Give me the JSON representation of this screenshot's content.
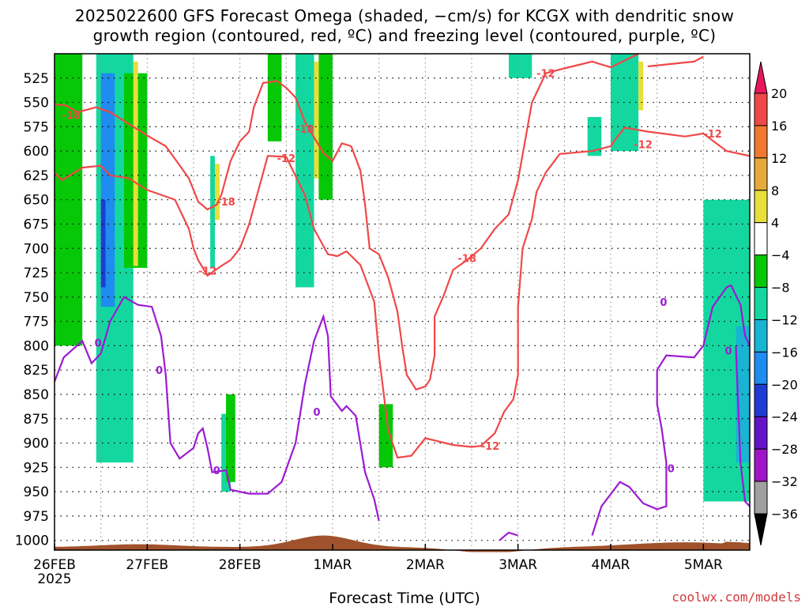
{
  "chart_data": {
    "type": "contour",
    "title_line1": "2025022600 GFS Forecast Omega (shaded, −cm/s) for KCGX with dendritic snow",
    "title_line2": "growth region (contoured, red, ºC) and freezing level (contoured, purple, ºC)",
    "xlabel": "Forecast Time (UTC)",
    "credit": "coolwx.com/models",
    "x_ticks": [
      "26FEB",
      "27FEB",
      "28FEB",
      "1MAR",
      "2MAR",
      "3MAR",
      "4MAR",
      "5MAR"
    ],
    "x_year": "2025",
    "y_ticks": [
      525,
      550,
      575,
      600,
      625,
      650,
      675,
      700,
      725,
      750,
      775,
      800,
      825,
      850,
      875,
      900,
      925,
      950,
      975,
      1000
    ],
    "y_range_hpa": [
      500,
      1010
    ],
    "x_range_days": [
      0,
      7.5
    ],
    "colorbar_labels": [
      20,
      16,
      12,
      8,
      4,
      -4,
      -8,
      -12,
      -16,
      -20,
      -24,
      -28,
      -32,
      -36
    ],
    "colorbar_colors": [
      "#e8165a",
      "#f04848",
      "#f07830",
      "#e6a93c",
      "#e8de3c",
      "#ffffff",
      "#06c806",
      "#14d7a0",
      "#18b4d2",
      "#1e8cf0",
      "#1e3cd2",
      "#6414c8",
      "#a014c8",
      "#a0a0a0",
      "#000000"
    ],
    "contour_labels": {
      "red": [
        "-18",
        "-12",
        "-18",
        "-12",
        "-18",
        "-12",
        "-18",
        "-12",
        "-12",
        "-12"
      ],
      "purple": [
        "0",
        "0",
        "0",
        "0",
        "0",
        "0",
        "0"
      ]
    },
    "red_contours": [
      {
        "level": -18,
        "points": [
          [
            0,
            552
          ],
          [
            0.12,
            553
          ],
          [
            0.25,
            560
          ],
          [
            0.45,
            555
          ],
          [
            0.6,
            560
          ],
          [
            0.8,
            572
          ],
          [
            1.0,
            584
          ],
          [
            1.2,
            595
          ],
          [
            1.3,
            608
          ],
          [
            1.45,
            628
          ],
          [
            1.55,
            652
          ],
          [
            1.65,
            660
          ],
          [
            1.75,
            655
          ],
          [
            1.8,
            645
          ],
          [
            1.9,
            610
          ],
          [
            2.0,
            590
          ],
          [
            2.1,
            580
          ],
          [
            2.15,
            555
          ],
          [
            2.25,
            530
          ],
          [
            2.4,
            528
          ],
          [
            2.5,
            535
          ],
          [
            2.6,
            545
          ],
          [
            2.7,
            570
          ],
          [
            2.75,
            578
          ],
          [
            2.9,
            602
          ],
          [
            3.0,
            610
          ],
          [
            3.1,
            592
          ],
          [
            3.2,
            595
          ],
          [
            3.3,
            620
          ],
          [
            3.35,
            655
          ],
          [
            3.4,
            700
          ],
          [
            3.5,
            706
          ],
          [
            3.6,
            730
          ],
          [
            3.7,
            765
          ],
          [
            3.75,
            800
          ],
          [
            3.8,
            830
          ],
          [
            3.9,
            845
          ],
          [
            4.0,
            842
          ],
          [
            4.05,
            835
          ],
          [
            4.1,
            810
          ],
          [
            4.1,
            770
          ],
          [
            4.2,
            748
          ],
          [
            4.3,
            722
          ],
          [
            4.45,
            712
          ],
          [
            4.6,
            700
          ],
          [
            4.75,
            680
          ],
          [
            4.9,
            665
          ],
          [
            5.0,
            630
          ],
          [
            5.15,
            550
          ],
          [
            5.3,
            520
          ],
          [
            5.5,
            515
          ],
          [
            5.8,
            508
          ],
          [
            6.0,
            514
          ],
          [
            6.3,
            500
          ]
        ]
      },
      {
        "level": -18,
        "points": [
          [
            6.4,
            513
          ],
          [
            6.9,
            508
          ],
          [
            7.0,
            503
          ]
        ]
      },
      {
        "level": -12,
        "points": [
          [
            0,
            622
          ],
          [
            0.08,
            630
          ],
          [
            0.3,
            617
          ],
          [
            0.5,
            615
          ],
          [
            0.6,
            625
          ],
          [
            0.8,
            628
          ],
          [
            1.0,
            640
          ],
          [
            1.15,
            645
          ],
          [
            1.3,
            650
          ],
          [
            1.45,
            680
          ],
          [
            1.5,
            700
          ],
          [
            1.55,
            712
          ],
          [
            1.65,
            728
          ],
          [
            1.8,
            718
          ],
          [
            1.9,
            712
          ],
          [
            2.0,
            700
          ],
          [
            2.1,
            675
          ],
          [
            2.2,
            640
          ],
          [
            2.3,
            605
          ],
          [
            2.5,
            606
          ],
          [
            2.7,
            645
          ],
          [
            2.8,
            680
          ],
          [
            2.95,
            706
          ],
          [
            3.05,
            708
          ],
          [
            3.15,
            703
          ],
          [
            3.3,
            717
          ],
          [
            3.45,
            755
          ],
          [
            3.5,
            810
          ],
          [
            3.6,
            887
          ],
          [
            3.7,
            915
          ],
          [
            3.85,
            913
          ],
          [
            4.0,
            895
          ],
          [
            4.3,
            902
          ],
          [
            4.5,
            904
          ],
          [
            4.6,
            903
          ],
          [
            4.75,
            890
          ],
          [
            4.85,
            868
          ],
          [
            4.95,
            855
          ],
          [
            5.0,
            830
          ],
          [
            5.0,
            760
          ],
          [
            5.05,
            700
          ],
          [
            5.15,
            670
          ],
          [
            5.2,
            642
          ],
          [
            5.3,
            622
          ],
          [
            5.45,
            603
          ],
          [
            5.8,
            600
          ],
          [
            6.0,
            595
          ],
          [
            6.05,
            588
          ],
          [
            6.15,
            576
          ],
          [
            6.4,
            580
          ],
          [
            6.8,
            585
          ],
          [
            7.0,
            582
          ],
          [
            7.25,
            600
          ],
          [
            7.5,
            605
          ]
        ]
      }
    ],
    "purple_contours": [
      {
        "level": 0,
        "points": [
          [
            0,
            837
          ],
          [
            0.1,
            812
          ],
          [
            0.3,
            795
          ],
          [
            0.4,
            818
          ],
          [
            0.5,
            808
          ],
          [
            0.6,
            775
          ],
          [
            0.75,
            750
          ],
          [
            0.9,
            758
          ],
          [
            1.05,
            760
          ],
          [
            1.15,
            790
          ],
          [
            1.2,
            830
          ],
          [
            1.25,
            900
          ],
          [
            1.35,
            916
          ],
          [
            1.5,
            905
          ],
          [
            1.55,
            890
          ],
          [
            1.6,
            885
          ],
          [
            1.65,
            905
          ],
          [
            1.7,
            930
          ],
          [
            1.85,
            928
          ],
          [
            1.9,
            948
          ],
          [
            2.1,
            952
          ],
          [
            2.3,
            952
          ],
          [
            2.45,
            940
          ],
          [
            2.6,
            900
          ],
          [
            2.7,
            840
          ],
          [
            2.8,
            795
          ],
          [
            2.9,
            770
          ],
          [
            2.95,
            790
          ],
          [
            2.98,
            852
          ],
          [
            3.1,
            867
          ],
          [
            3.15,
            862
          ],
          [
            3.25,
            872
          ],
          [
            3.35,
            930
          ],
          [
            3.45,
            958
          ],
          [
            3.5,
            980
          ]
        ]
      },
      {
        "level": 0,
        "points": [
          [
            4.8,
            1000
          ],
          [
            4.9,
            992
          ],
          [
            5.0,
            995
          ]
        ]
      },
      {
        "level": 0,
        "points": [
          [
            5.8,
            995
          ],
          [
            5.9,
            965
          ],
          [
            6.1,
            940
          ],
          [
            6.2,
            945
          ],
          [
            6.35,
            962
          ],
          [
            6.5,
            968
          ],
          [
            6.6,
            965
          ],
          [
            6.6,
            920
          ],
          [
            6.55,
            885
          ],
          [
            6.5,
            860
          ],
          [
            6.5,
            825
          ],
          [
            6.6,
            810
          ],
          [
            6.9,
            812
          ],
          [
            7.0,
            800
          ],
          [
            7.1,
            760
          ],
          [
            7.25,
            740
          ],
          [
            7.3,
            738
          ],
          [
            7.4,
            758
          ],
          [
            7.45,
            790
          ],
          [
            7.5,
            800
          ]
        ]
      },
      {
        "level": 0,
        "points": [
          [
            7.35,
            800
          ],
          [
            7.4,
            920
          ],
          [
            7.45,
            960
          ],
          [
            7.5,
            965
          ]
        ]
      }
    ],
    "omega_patches": [
      {
        "x": [
          0,
          0.3
        ],
        "p": [
          500,
          800
        ],
        "v": -4
      },
      {
        "x": [
          0.45,
          0.85
        ],
        "p": [
          500,
          920
        ],
        "v": -8
      },
      {
        "x": [
          0.5,
          0.65
        ],
        "p": [
          520,
          760
        ],
        "v": -16
      },
      {
        "x": [
          0.5,
          0.55
        ],
        "p": [
          650,
          740
        ],
        "v": -20
      },
      {
        "x": [
          0.75,
          1.0
        ],
        "p": [
          520,
          720
        ],
        "v": -4
      },
      {
        "x": [
          1.68,
          1.73
        ],
        "p": [
          605,
          720
        ],
        "v": -8
      },
      {
        "x": [
          1.8,
          1.9
        ],
        "p": [
          870,
          950
        ],
        "v": -8
      },
      {
        "x": [
          1.85,
          1.95
        ],
        "p": [
          850,
          940
        ],
        "v": -4
      },
      {
        "x": [
          2.3,
          2.45
        ],
        "p": [
          500,
          590
        ],
        "v": -4
      },
      {
        "x": [
          2.6,
          2.8
        ],
        "p": [
          500,
          740
        ],
        "v": -8
      },
      {
        "x": [
          2.85,
          3.0
        ],
        "p": [
          500,
          650
        ],
        "v": -4
      },
      {
        "x": [
          3.5,
          3.65
        ],
        "p": [
          860,
          925
        ],
        "v": -4
      },
      {
        "x": [
          4.9,
          5.15
        ],
        "p": [
          500,
          525
        ],
        "v": -8
      },
      {
        "x": [
          5.75,
          5.9
        ],
        "p": [
          565,
          605
        ],
        "v": -8
      },
      {
        "x": [
          6.0,
          6.3
        ],
        "p": [
          500,
          600
        ],
        "v": -8
      },
      {
        "x": [
          7.0,
          7.5
        ],
        "p": [
          650,
          960
        ],
        "v": -8
      },
      {
        "x": [
          7.35,
          7.5
        ],
        "p": [
          780,
          920
        ],
        "v": -12
      }
    ]
  }
}
